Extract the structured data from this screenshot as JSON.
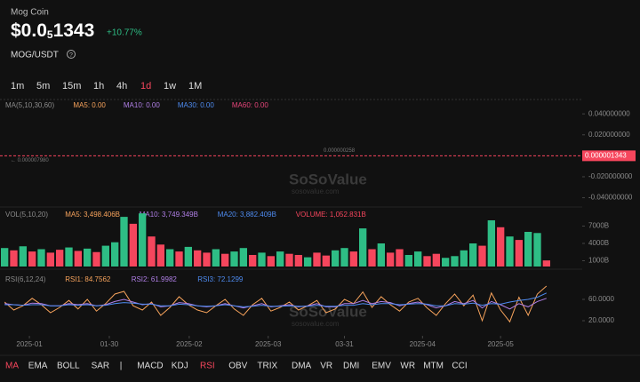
{
  "header": {
    "name": "Mog Coin",
    "price_prefix": "$0.0",
    "price_zeros": "5",
    "price_digits": "1343",
    "change": "+10.77%",
    "pair": "MOG/USDT"
  },
  "timeframes": [
    "1m",
    "5m",
    "15m",
    "1h",
    "4h",
    "1d",
    "1w",
    "1M"
  ],
  "active_timeframe": 5,
  "watermark": {
    "brand": "SoSoValue",
    "site": "sosovalue.com"
  },
  "indicators": [
    "MA",
    "EMA",
    "BOLL",
    "SAR",
    "|",
    "MACD",
    "KDJ",
    "RSI",
    "OBV",
    "TRIX",
    "DMA",
    "VR",
    "DMI",
    "EMV",
    "WR",
    "MTM",
    "CCI"
  ],
  "active_indicators": [
    0,
    7
  ],
  "chart_data": [
    {
      "type": "line",
      "legend_title": "MA(5,10,30,60)",
      "legend": [
        {
          "text": "MA5: 0.00",
          "color": "#f7a35c"
        },
        {
          "text": "MA10: 0.00",
          "color": "#b07fe6"
        },
        {
          "text": "MA30: 0.00",
          "color": "#4e8bf0"
        },
        {
          "text": "MA60: 0.00",
          "color": "#e6457a"
        }
      ],
      "ylim": [
        -0.048,
        0.052
      ],
      "yticks": [
        {
          "value": 0.04,
          "label": "0.040000000"
        },
        {
          "value": 0.02,
          "label": "0.020000000"
        },
        {
          "value": -0.02,
          "label": "-0.020000000"
        },
        {
          "value": -0.04,
          "label": "-0.040000000"
        }
      ],
      "price_line": 1.343e-06,
      "price_tag": "0.000001343",
      "price_color": "#f6465d",
      "annotations": [
        "0.000000258",
        "← 0.000007980"
      ]
    },
    {
      "type": "bar",
      "legend_title": "VOL(5,10,20)",
      "legend": [
        {
          "text": "MA5: 3,498.406B",
          "color": "#f7a35c"
        },
        {
          "text": "MA10: 3,749.349B",
          "color": "#b07fe6"
        },
        {
          "text": "MA20: 3,882.409B",
          "color": "#4e8bf0"
        },
        {
          "text": "VOLUME: 1,052.831B",
          "color": "#f6465d"
        }
      ],
      "ylim": [
        0,
        10000
      ],
      "yticks": [
        {
          "value": 7000,
          "label": "7000B"
        },
        {
          "value": 4000,
          "label": "4000B"
        },
        {
          "value": 1000,
          "label": "1000B"
        }
      ],
      "up_color": "#2ebd85",
      "down_color": "#f6465d",
      "values": [
        3200,
        2800,
        3500,
        2600,
        3000,
        2400,
        2900,
        3300,
        2700,
        3100,
        2500,
        3600,
        4200,
        8600,
        7400,
        9200,
        5200,
        3800,
        3000,
        2600,
        3400,
        2800,
        2400,
        3000,
        2200,
        2600,
        3200,
        2000,
        2400,
        1800,
        2600,
        2200,
        2000,
        1600,
        2400,
        1900,
        2800,
        3200,
        2600,
        6600,
        3000,
        4000,
        2400,
        3000,
        2000,
        2600,
        1800,
        2200,
        1500,
        1800,
        2800,
        4000,
        3600,
        8000,
        6800,
        5200,
        4600,
        6000,
        5800,
        1053
      ],
      "rising": [
        1,
        0,
        1,
        0,
        1,
        0,
        0,
        1,
        0,
        1,
        0,
        1,
        1,
        1,
        0,
        1,
        0,
        0,
        1,
        0,
        1,
        0,
        0,
        1,
        0,
        1,
        1,
        0,
        1,
        0,
        1,
        0,
        0,
        1,
        0,
        0,
        1,
        1,
        0,
        1,
        0,
        1,
        0,
        0,
        1,
        1,
        0,
        0,
        1,
        1,
        1,
        1,
        0,
        1,
        0,
        1,
        0,
        1,
        1,
        0
      ]
    },
    {
      "type": "line",
      "legend_title": "RSI(6,12,24)",
      "legend": [
        {
          "text": "RSI1: 84.7562",
          "color": "#f7a35c"
        },
        {
          "text": "RSI2: 61.9982",
          "color": "#b07fe6"
        },
        {
          "text": "RSI3: 72.1299",
          "color": "#4e8bf0"
        }
      ],
      "ylim": [
        0,
        100
      ],
      "yticks": [
        {
          "value": 60,
          "label": "60.0000"
        },
        {
          "value": 20,
          "label": "20.0000"
        }
      ],
      "series": [
        {
          "color": "#f7a35c",
          "values": [
            55,
            40,
            48,
            62,
            50,
            35,
            45,
            58,
            42,
            60,
            38,
            52,
            70,
            75,
            48,
            40,
            55,
            30,
            45,
            65,
            50,
            40,
            35,
            48,
            60,
            42,
            30,
            50,
            62,
            38,
            45,
            55,
            40,
            48,
            58,
            35,
            42,
            60,
            52,
            74,
            45,
            65,
            50,
            38,
            55,
            62,
            44,
            30,
            52,
            70,
            48,
            68,
            20,
            72,
            40,
            18,
            64,
            30,
            70,
            85
          ]
        },
        {
          "color": "#b07fe6",
          "values": [
            52,
            50,
            49,
            53,
            52,
            48,
            48,
            52,
            50,
            52,
            48,
            50,
            56,
            60,
            55,
            50,
            52,
            46,
            48,
            54,
            52,
            48,
            46,
            48,
            52,
            48,
            44,
            48,
            52,
            46,
            48,
            50,
            46,
            48,
            52,
            46,
            46,
            52,
            52,
            58,
            52,
            56,
            54,
            48,
            52,
            55,
            50,
            44,
            48,
            56,
            52,
            58,
            44,
            56,
            50,
            42,
            52,
            46,
            56,
            62
          ]
        },
        {
          "color": "#4e8bf0",
          "values": [
            50,
            50,
            49,
            50,
            50,
            48,
            48,
            50,
            49,
            50,
            48,
            49,
            52,
            54,
            53,
            51,
            51,
            48,
            48,
            51,
            50,
            48,
            47,
            48,
            50,
            48,
            46,
            47,
            49,
            47,
            47,
            48,
            47,
            47,
            49,
            47,
            47,
            49,
            49,
            52,
            50,
            52,
            52,
            50,
            51,
            52,
            51,
            48,
            48,
            52,
            51,
            53,
            49,
            52,
            51,
            55,
            58,
            60,
            64,
            72
          ]
        }
      ],
      "xticks": [
        {
          "value": 2.7,
          "label": "2025-01"
        },
        {
          "value": 11.4,
          "label": "01-30"
        },
        {
          "value": 20.1,
          "label": "2025-02"
        },
        {
          "value": 28.7,
          "label": "2025-03"
        },
        {
          "value": 37,
          "label": "03-31"
        },
        {
          "value": 45.5,
          "label": "2025-04"
        },
        {
          "value": 54,
          "label": "2025-05"
        }
      ]
    }
  ]
}
